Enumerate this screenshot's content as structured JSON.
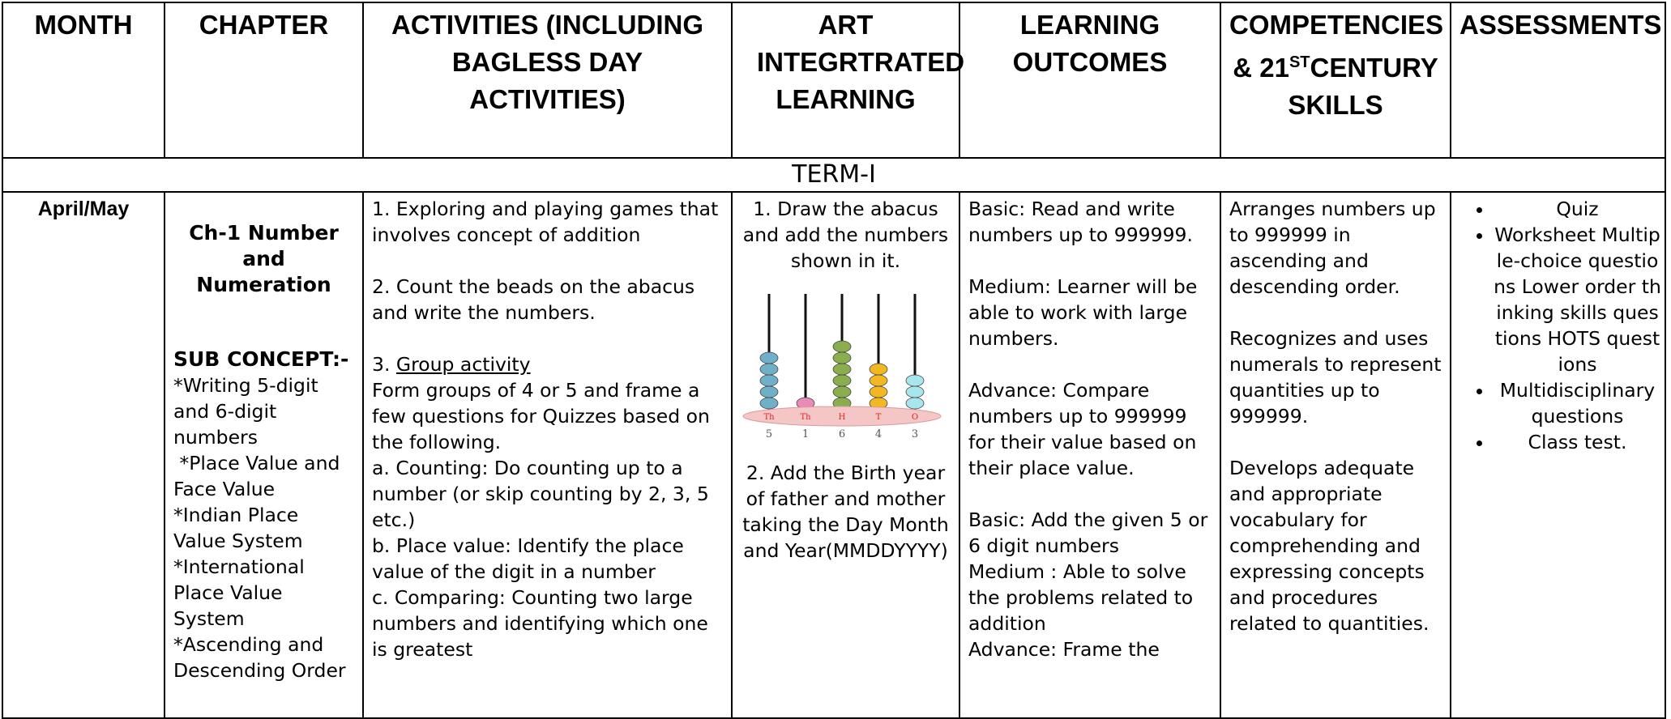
{
  "header": {
    "columns": [
      "MONTH",
      "CHAPTER",
      "ACTIVITIES (INCLUDING BAGLESS DAY ACTIVITIES)",
      "ART INTEGRTRATED LEARNING",
      "LEARNING OUTCOMES"
    ],
    "competencies": {
      "pre": "COMPETENCIES & 21",
      "sup": "ST",
      "post": "CENTURY SKILLS"
    },
    "assessments": "ASSESSMENTS"
  },
  "term": "TERM-I",
  "row": {
    "month": "April/May",
    "chapter": {
      "title": "Ch-1 Number and Numeration",
      "sub_concept_heading": "SUB CONCEPT:-",
      "sub_concepts": [
        "*Writing 5-digit and 6-digit numbers",
        " *Place Value and Face Value",
        "*Indian Place Value System",
        "*International Place Value System",
        "*Ascending and Descending Order"
      ]
    },
    "activities": {
      "before": [
        "1. Exploring and playing games that involves concept of addition",
        "2. Count the beads on the abacus and write the numbers."
      ],
      "group_number": "3.",
      "group_title": "Group activity",
      "after": [
        "Form groups of 4 or 5 and frame a few questions for Quizzes based on the following.",
        "a. Counting: Do counting up to a number (or skip counting by 2, 3, 5 etc.)",
        "b. Place value: Identify the place value of the digit in a number",
        "c. Comparing: Counting two large numbers and identifying which one is greatest"
      ]
    },
    "art": {
      "items": [
        "1. Draw the abacus and add the numbers shown in it.",
        "2. Add the Birth year of father and mother taking the Day Month and Year(MMDDYYYY)"
      ],
      "abacus_labels": [
        "Th",
        "Th",
        "H",
        "T",
        "O"
      ],
      "abacus_digits": [
        5,
        1,
        6,
        4,
        3
      ]
    },
    "outcomes": {
      "first": [
        "Basic: Read and write numbers up to 999999.",
        "Medium: Learner will be able to work with large numbers.",
        "Advance: Compare numbers up to 999999 for their value based on their place value."
      ],
      "second": [
        "Basic: Add the given 5 or 6 digit numbers",
        "Medium : Able to solve the problems related to addition",
        "Advance: Frame the"
      ]
    },
    "competencies": [
      "Arranges numbers up to 999999 in ascending and descending order.",
      "Recognizes and uses numerals to represent quantities up to 999999.",
      "Develops adequate and appropriate vocabulary for comprehending and expressing concepts and procedures related to quantities."
    ],
    "assessments": [
      "Quiz",
      "Worksheet Multiple-choice questions Lower order thinking skills questions HOTS questions",
      "Multidisciplinary questions",
      "Class test."
    ]
  }
}
